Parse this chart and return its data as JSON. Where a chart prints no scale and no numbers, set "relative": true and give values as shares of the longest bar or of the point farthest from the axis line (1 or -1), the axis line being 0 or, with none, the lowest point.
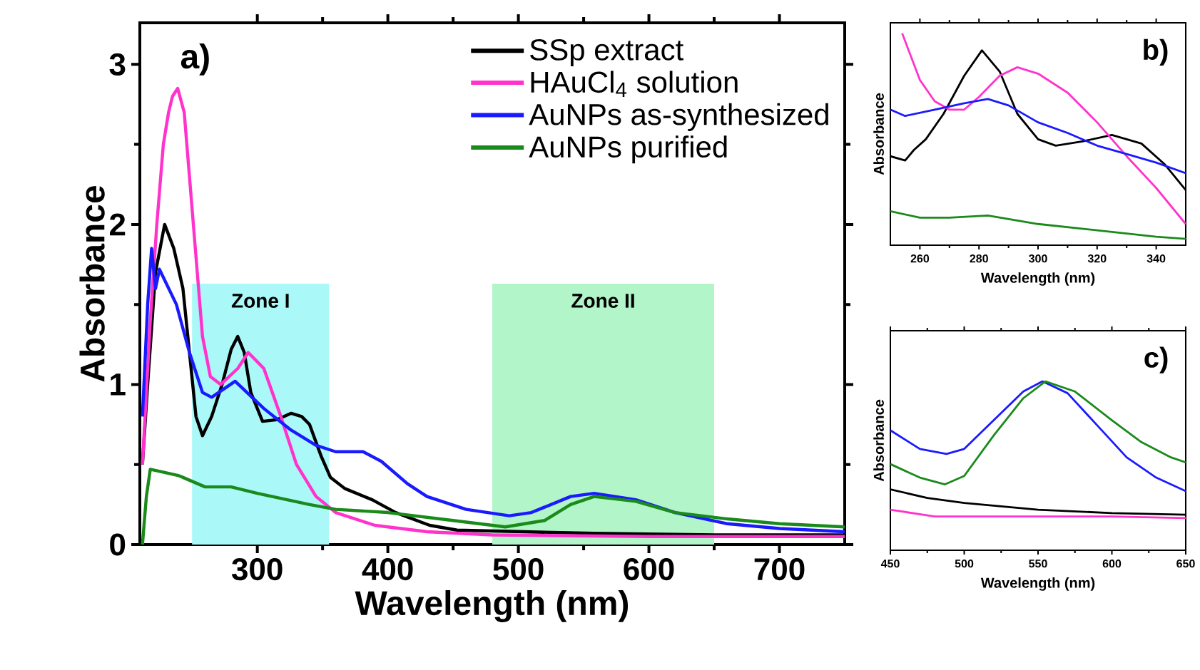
{
  "chart_data": [
    {
      "type": "line",
      "xlabel": "Wavelength (nm)",
      "ylabel": "Absorbance",
      "xlim": [
        210,
        750
      ],
      "ylim": [
        0,
        3.26
      ],
      "xticks": [
        300,
        400,
        500,
        600,
        700
      ],
      "yticks": [
        0,
        1,
        2,
        3
      ],
      "legend": "top right",
      "annotations": [
        "a)"
      ],
      "bands": [
        {
          "axis": "x",
          "from": 250,
          "to": 355,
          "label": "Zone I",
          "color": "#aaf8f8"
        },
        {
          "axis": "x",
          "from": 480,
          "to": 650,
          "label": "Zone II",
          "color": "#b2f5c8"
        }
      ],
      "series": [
        {
          "name": "SSp extract",
          "color": "#000000",
          "x": [
            212,
            216,
            222,
            229,
            236,
            243,
            248,
            253,
            258,
            265,
            273,
            280,
            285,
            290,
            295,
            304,
            315,
            326,
            334,
            340,
            349,
            356,
            367,
            388,
            406,
            432,
            453,
            504,
            558,
            650,
            750
          ],
          "values": [
            0.5,
            1.0,
            1.7,
            2.0,
            1.85,
            1.6,
            1.2,
            0.8,
            0.68,
            0.8,
            1.0,
            1.22,
            1.3,
            1.2,
            0.95,
            0.77,
            0.78,
            0.82,
            0.8,
            0.75,
            0.55,
            0.42,
            0.35,
            0.28,
            0.2,
            0.12,
            0.09,
            0.08,
            0.07,
            0.06,
            0.06
          ]
        },
        {
          "name": "HAuCl$_{4}$ solution",
          "color": "#ff33cc",
          "x": [
            212,
            218,
            223,
            228,
            232,
            235,
            239,
            244,
            248,
            252,
            258,
            264,
            272,
            285,
            293,
            305,
            318,
            330,
            345,
            360,
            390,
            430,
            480,
            600,
            750
          ],
          "values": [
            0.5,
            1.4,
            2.0,
            2.5,
            2.7,
            2.8,
            2.85,
            2.7,
            2.3,
            1.9,
            1.3,
            1.05,
            1.0,
            1.1,
            1.2,
            1.1,
            0.8,
            0.5,
            0.3,
            0.2,
            0.12,
            0.08,
            0.06,
            0.05,
            0.05
          ]
        },
        {
          "name": "AuNPs as-synthesized",
          "color": "#1a1aff",
          "x": [
            212,
            216,
            219,
            222,
            225,
            238,
            248,
            258,
            265,
            283,
            305,
            325,
            345,
            360,
            381,
            395,
            415,
            430,
            460,
            493,
            510,
            540,
            558,
            590,
            620,
            660,
            700,
            750
          ],
          "values": [
            0.8,
            1.5,
            1.85,
            1.6,
            1.72,
            1.5,
            1.2,
            0.95,
            0.92,
            1.02,
            0.85,
            0.72,
            0.62,
            0.58,
            0.58,
            0.52,
            0.38,
            0.3,
            0.22,
            0.18,
            0.2,
            0.3,
            0.32,
            0.28,
            0.2,
            0.13,
            0.1,
            0.08
          ]
        },
        {
          "name": "AuNPs purified",
          "color": "#1a8a1a",
          "x": [
            212,
            215,
            218,
            240,
            260,
            280,
            300,
            340,
            360,
            400,
            450,
            490,
            520,
            540,
            558,
            590,
            620,
            660,
            700,
            750
          ],
          "values": [
            0.0,
            0.3,
            0.47,
            0.43,
            0.36,
            0.36,
            0.32,
            0.25,
            0.22,
            0.2,
            0.15,
            0.11,
            0.15,
            0.25,
            0.3,
            0.27,
            0.2,
            0.16,
            0.13,
            0.11
          ]
        }
      ]
    },
    {
      "type": "line",
      "xlabel": "Wavelength (nm)",
      "ylabel": "Absorbance",
      "relative": true,
      "xlim": [
        250,
        350
      ],
      "xticks": [
        260,
        280,
        300,
        320,
        340
      ],
      "tick_labels": "x",
      "annotations": [
        "b)"
      ],
      "series": [
        {
          "color": "#000000",
          "x": [
            250,
            255,
            258,
            262,
            268,
            275,
            281,
            287,
            293,
            300,
            306,
            315,
            325,
            335,
            343,
            350
          ],
          "values": [
            0.42,
            0.4,
            0.45,
            0.5,
            0.62,
            0.8,
            0.92,
            0.82,
            0.62,
            0.5,
            0.47,
            0.49,
            0.52,
            0.48,
            0.38,
            0.26
          ]
        },
        {
          "color": "#ff33cc",
          "x": [
            254,
            260,
            265,
            270,
            275,
            280,
            287,
            293,
            300,
            310,
            320,
            330,
            340,
            350
          ],
          "values": [
            1.0,
            0.78,
            0.68,
            0.64,
            0.64,
            0.7,
            0.8,
            0.84,
            0.81,
            0.72,
            0.58,
            0.42,
            0.27,
            0.1
          ]
        },
        {
          "color": "#1a1aff",
          "x": [
            250,
            255,
            265,
            275,
            283,
            290,
            300,
            310,
            320,
            330,
            340,
            350
          ],
          "values": [
            0.64,
            0.61,
            0.64,
            0.67,
            0.69,
            0.66,
            0.58,
            0.53,
            0.47,
            0.43,
            0.39,
            0.34
          ]
        },
        {
          "color": "#1a8a1a",
          "x": [
            250,
            260,
            270,
            283,
            300,
            320,
            340,
            350
          ],
          "values": [
            0.16,
            0.13,
            0.13,
            0.14,
            0.1,
            0.07,
            0.04,
            0.03
          ]
        }
      ]
    },
    {
      "type": "line",
      "xlabel": "Wavelength (nm)",
      "ylabel": "Absorbance",
      "relative": true,
      "xlim": [
        450,
        650
      ],
      "xticks": [
        450,
        500,
        550,
        600,
        650
      ],
      "tick_labels": "x",
      "annotations": [
        "c)"
      ],
      "series": [
        {
          "color": "#000000",
          "x": [
            450,
            475,
            500,
            550,
            600,
            650
          ],
          "values": [
            0.36,
            0.31,
            0.28,
            0.24,
            0.22,
            0.21
          ]
        },
        {
          "color": "#ff33cc",
          "x": [
            450,
            480,
            520,
            600,
            650
          ],
          "values": [
            0.24,
            0.2,
            0.2,
            0.2,
            0.19
          ]
        },
        {
          "color": "#1a1aff",
          "x": [
            450,
            470,
            488,
            500,
            520,
            540,
            553,
            570,
            590,
            610,
            630,
            650
          ],
          "values": [
            0.71,
            0.6,
            0.57,
            0.6,
            0.77,
            0.94,
            1.0,
            0.93,
            0.74,
            0.55,
            0.43,
            0.35
          ]
        },
        {
          "color": "#1a8a1a",
          "x": [
            450,
            470,
            487,
            500,
            520,
            540,
            555,
            575,
            600,
            620,
            640,
            650
          ],
          "values": [
            0.51,
            0.43,
            0.39,
            0.44,
            0.68,
            0.9,
            1.0,
            0.94,
            0.77,
            0.64,
            0.55,
            0.52
          ]
        }
      ]
    }
  ]
}
